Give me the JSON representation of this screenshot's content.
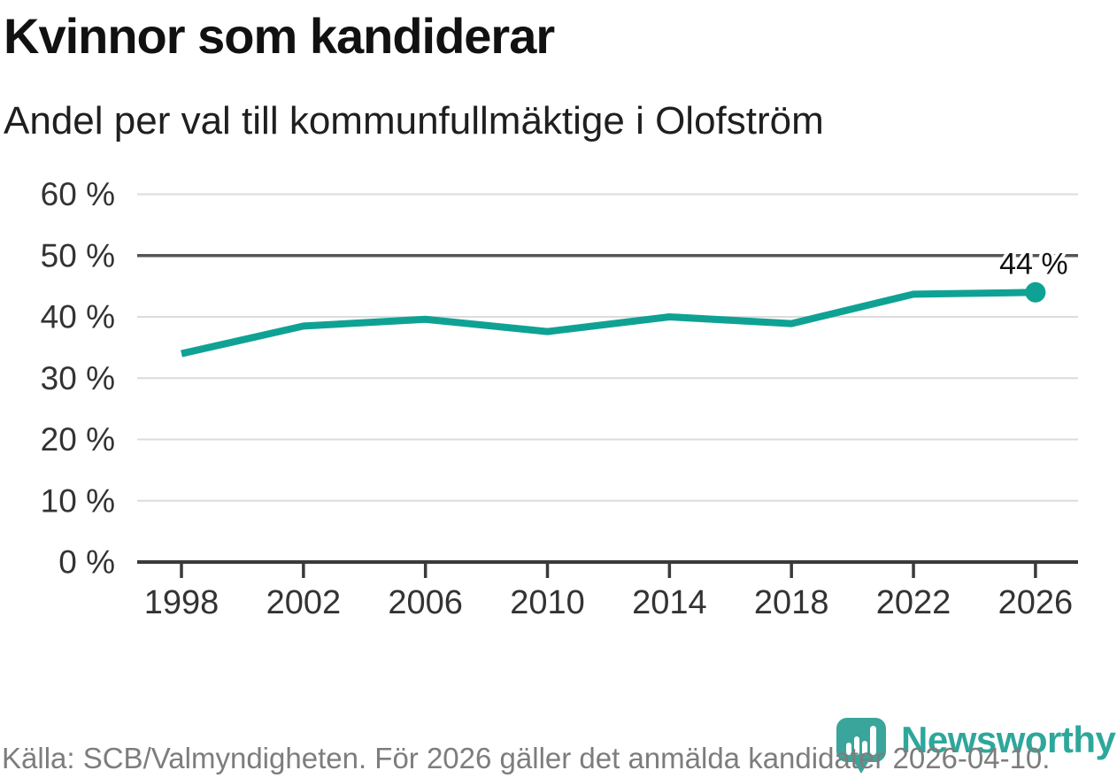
{
  "header": {
    "title": "Kvinnor som kandiderar",
    "subtitle": "Andel per val till kommunfullmäktige i Olofström"
  },
  "chart_data": {
    "type": "line",
    "title": "Kvinnor som kandiderar",
    "subtitle": "Andel per val till kommunfullmäktige i Olofström",
    "x": [
      1998,
      2002,
      2006,
      2010,
      2014,
      2018,
      2022,
      2026
    ],
    "x_tick_labels": [
      "1998",
      "2002",
      "2006",
      "2010",
      "2014",
      "2018",
      "2022",
      "2026"
    ],
    "values": [
      34.0,
      38.5,
      39.6,
      37.6,
      40.0,
      38.9,
      43.7,
      44.0
    ],
    "y_ticks": [
      0,
      10,
      20,
      30,
      40,
      50,
      60
    ],
    "y_tick_labels": [
      "0 %",
      "10 %",
      "20 %",
      "30 %",
      "40 %",
      "50 %",
      "60 %"
    ],
    "ylim": [
      0,
      60
    ],
    "reference_line": 50,
    "grid": "horizontal",
    "legend": "none",
    "end_label": "44 %",
    "last_point_marker": true,
    "line_color": "#0fa294"
  },
  "footer": {
    "source": "Källa: SCB/Valmyndigheten. För 2026 gäller det anmälda kandidater 2026-04-10.",
    "brand_name": "Newsworthy"
  },
  "colors": {
    "accent_teal": "#0fa294",
    "brand_teal": "#2ea79b",
    "grid": "#dcdcdc",
    "reference_line": "#555555",
    "axis": "#3a3a3a",
    "tick_text": "#333333",
    "label_text": "#111111",
    "muted_text": "#7d7d7d"
  }
}
